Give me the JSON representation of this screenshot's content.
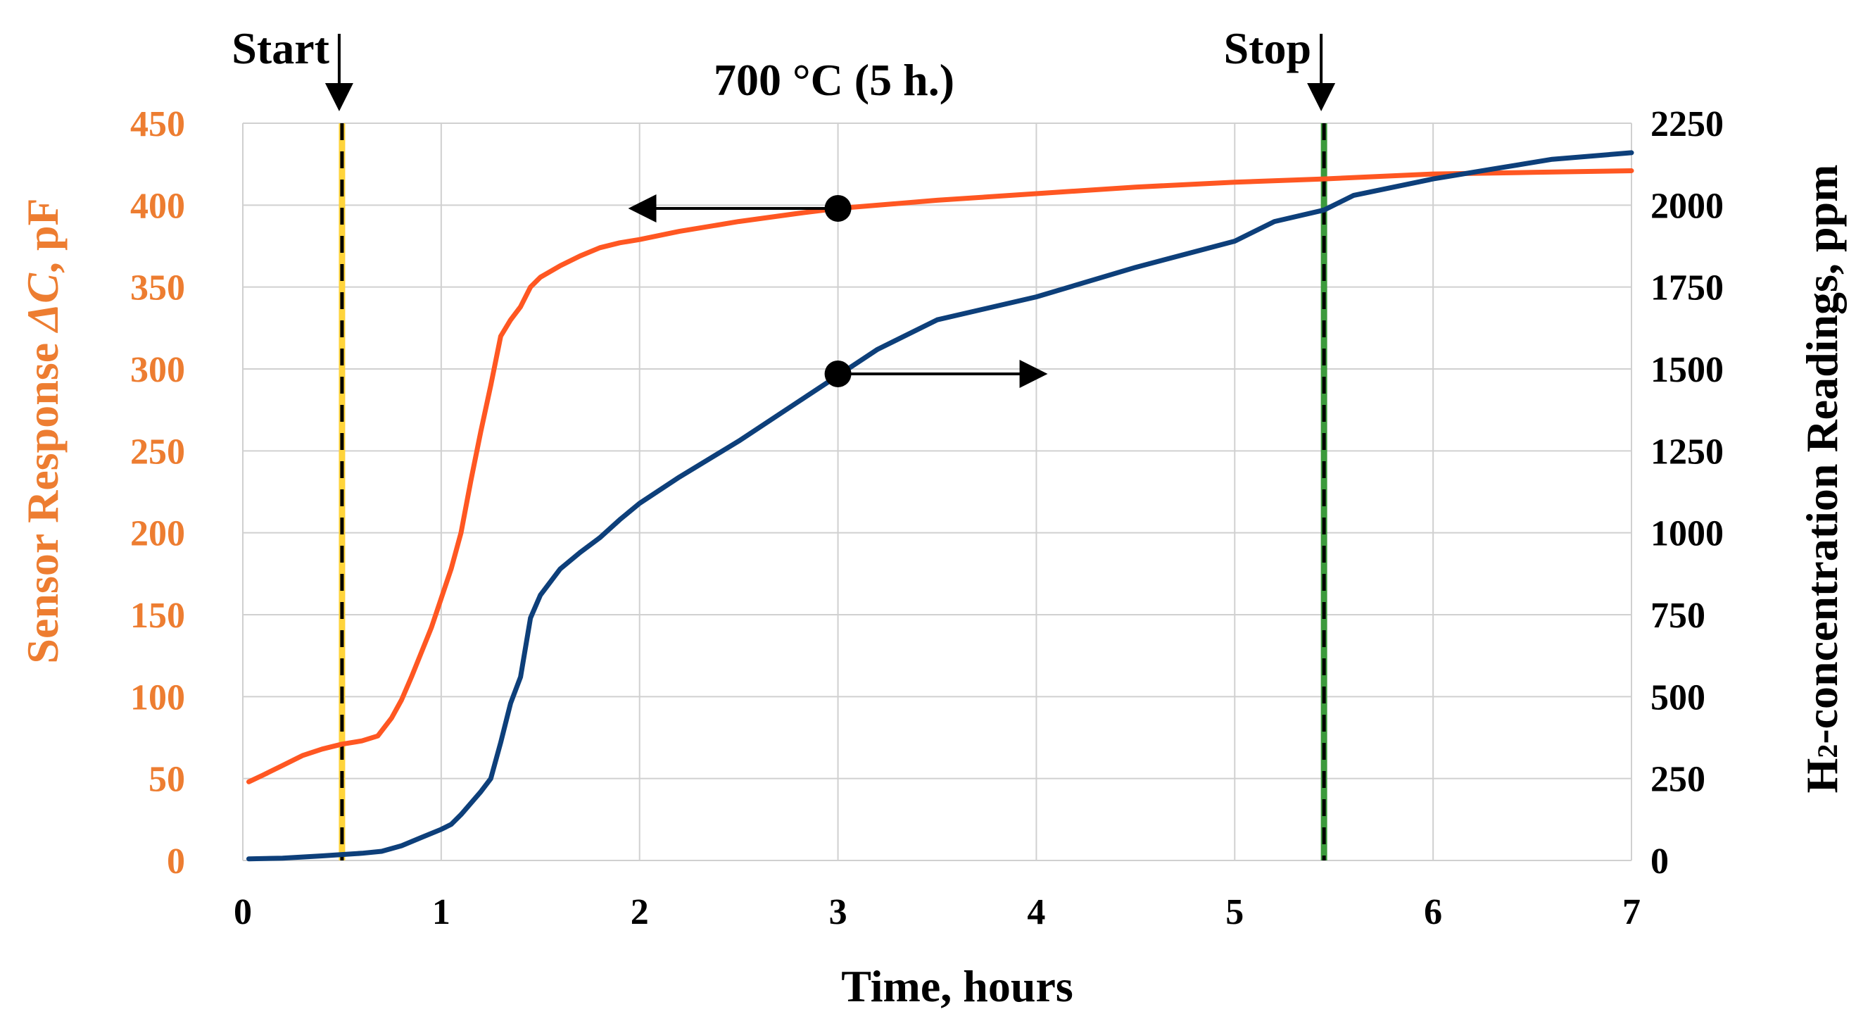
{
  "chart_data": {
    "type": "line",
    "title": "700 °C (5 h.)",
    "xlabel": "Time, hours",
    "ylabel_left_prefix": "Sensor Response ",
    "ylabel_left_symbol": "ΔC",
    "ylabel_left_suffix": ", pF",
    "ylabel_right_prefix": "H",
    "ylabel_right_sub": "2",
    "ylabel_right_suffix": "-concentration Readings, ppm",
    "xlim": [
      0,
      7
    ],
    "ylim_left": [
      0,
      450
    ],
    "ylim_right": [
      0,
      2250
    ],
    "x_ticks": [
      "0",
      "1",
      "2",
      "3",
      "4",
      "5",
      "6",
      "7"
    ],
    "y_left_ticks": [
      "0",
      "50",
      "100",
      "150",
      "200",
      "250",
      "300",
      "350",
      "400",
      "450"
    ],
    "y_right_ticks": [
      "0",
      "250",
      "500",
      "750",
      "1000",
      "1250",
      "1500",
      "1750",
      "2000",
      "2250"
    ],
    "grid": true,
    "colors": {
      "sensor": "#FF5722",
      "h2": "#0D3F7A",
      "left_axis_text": "#ED7D31",
      "start_line": "#FFD43B",
      "stop_line": "#3C9A3C",
      "grid": "#d0d0d0"
    },
    "markers": {
      "start": {
        "label": "Start",
        "x": 0.5
      },
      "stop": {
        "label": "Stop",
        "x": 5.45
      }
    },
    "series": [
      {
        "name": "Sensor Response ΔC, pF",
        "axis": "left",
        "x": [
          0.03,
          0.1,
          0.2,
          0.3,
          0.4,
          0.5,
          0.6,
          0.68,
          0.75,
          0.8,
          0.85,
          0.9,
          0.95,
          1.0,
          1.05,
          1.1,
          1.15,
          1.2,
          1.25,
          1.3,
          1.35,
          1.4,
          1.45,
          1.5,
          1.6,
          1.7,
          1.8,
          1.9,
          2.0,
          2.2,
          2.5,
          2.8,
          3.0,
          3.5,
          4.0,
          4.5,
          5.0,
          5.45,
          6.0,
          6.5,
          7.0
        ],
        "values": [
          48,
          52,
          58,
          64,
          68,
          71,
          73,
          76,
          87,
          98,
          112,
          127,
          142,
          160,
          178,
          200,
          232,
          262,
          290,
          320,
          330,
          338,
          350,
          356,
          363,
          369,
          374,
          377,
          379,
          384,
          390,
          395,
          398,
          403,
          407,
          411,
          414,
          416,
          419,
          420,
          421
        ]
      },
      {
        "name": "H2-concentration Readings, ppm",
        "axis": "right",
        "x": [
          0.03,
          0.2,
          0.4,
          0.5,
          0.6,
          0.7,
          0.8,
          0.9,
          1.0,
          1.05,
          1.1,
          1.2,
          1.25,
          1.3,
          1.35,
          1.4,
          1.45,
          1.5,
          1.6,
          1.7,
          1.8,
          1.9,
          2.0,
          2.2,
          2.5,
          2.8,
          3.0,
          3.2,
          3.5,
          4.0,
          4.5,
          5.0,
          5.2,
          5.45,
          5.6,
          6.0,
          6.3,
          6.6,
          7.0
        ],
        "values": [
          5,
          7,
          14,
          18,
          22,
          28,
          45,
          70,
          95,
          110,
          140,
          210,
          250,
          360,
          480,
          560,
          740,
          810,
          890,
          940,
          985,
          1040,
          1090,
          1170,
          1280,
          1400,
          1480,
          1560,
          1650,
          1720,
          1810,
          1890,
          1950,
          1985,
          2030,
          2080,
          2110,
          2140,
          2160
        ]
      }
    ],
    "annotations": [
      {
        "text": "",
        "series": "Sensor Response ΔC, pF",
        "x": 3.0,
        "y": 398,
        "arrow": "left"
      },
      {
        "text": "",
        "series": "H2-concentration Readings, ppm",
        "x": 3.0,
        "y": 1485,
        "arrow": "right"
      }
    ]
  }
}
